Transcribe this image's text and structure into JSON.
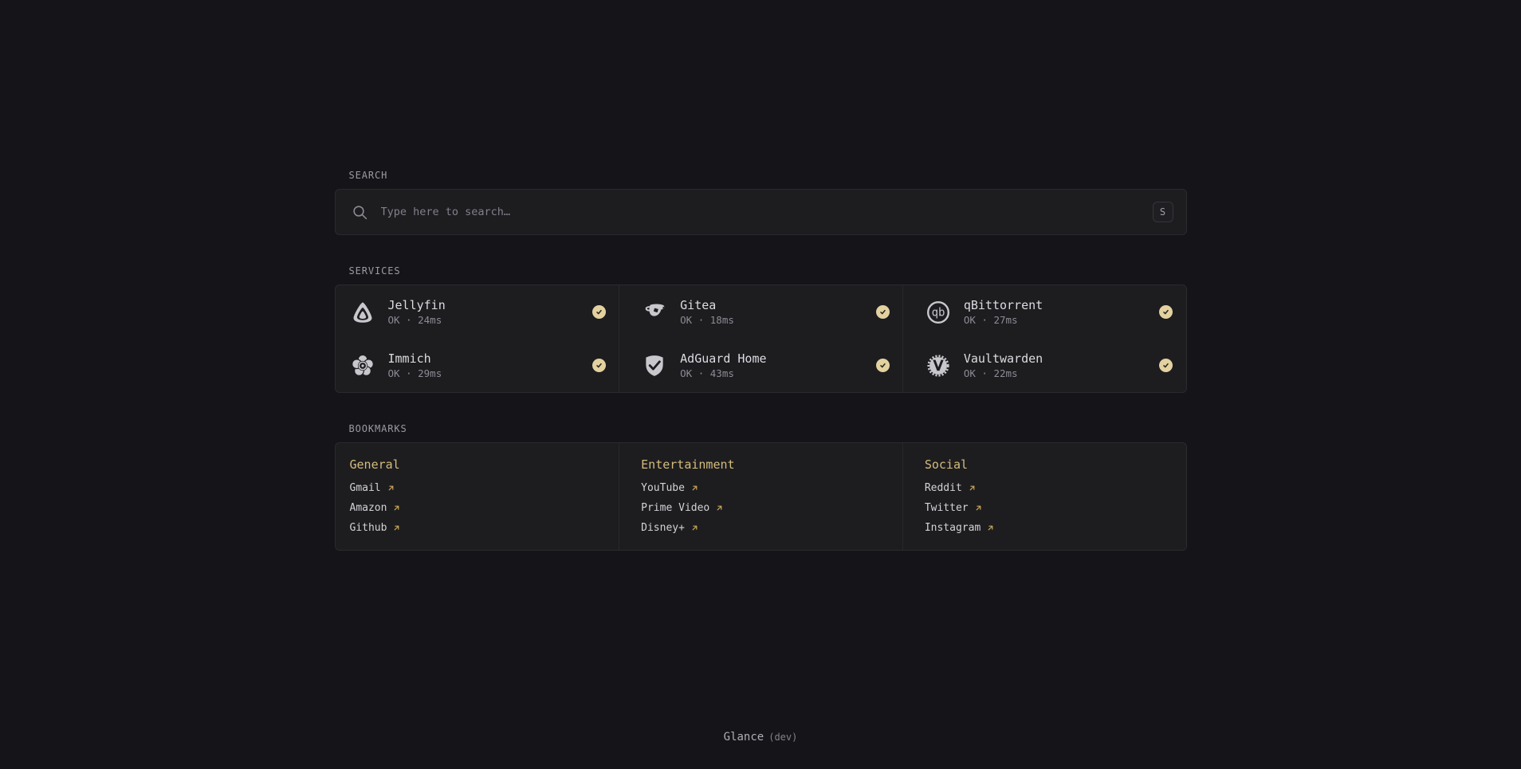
{
  "colors": {
    "accent": "#d5bc7c",
    "link_arrow": "#c7a65a",
    "status_ok_badge": "#e3d1a0",
    "background": "#151519",
    "card_background": "#1d1d20"
  },
  "search": {
    "section_label": "SEARCH",
    "placeholder": "Type here to search…",
    "shortcut_key": "S",
    "icon": "magnifier"
  },
  "services": {
    "section_label": "SERVICES",
    "status_badge_icon": "check",
    "items": [
      {
        "name": "Jellyfin",
        "status": "OK · 24ms",
        "icon": "jellyfin",
        "ok": true
      },
      {
        "name": "Gitea",
        "status": "OK · 18ms",
        "icon": "gitea",
        "ok": true
      },
      {
        "name": "qBittorrent",
        "status": "OK · 27ms",
        "icon": "qbittorrent",
        "ok": true
      },
      {
        "name": "Immich",
        "status": "OK · 29ms",
        "icon": "immich",
        "ok": true
      },
      {
        "name": "AdGuard Home",
        "status": "OK · 43ms",
        "icon": "adguard",
        "ok": true
      },
      {
        "name": "Vaultwarden",
        "status": "OK · 22ms",
        "icon": "vaultwarden",
        "ok": true
      }
    ]
  },
  "bookmarks": {
    "section_label": "BOOKMARKS",
    "link_arrow_icon": "arrow-up-right",
    "groups": [
      {
        "title": "General",
        "links": [
          "Gmail",
          "Amazon",
          "Github"
        ]
      },
      {
        "title": "Entertainment",
        "links": [
          "YouTube",
          "Prime Video",
          "Disney+"
        ]
      },
      {
        "title": "Social",
        "links": [
          "Reddit",
          "Twitter",
          "Instagram"
        ]
      }
    ]
  },
  "footer": {
    "app_name": "Glance",
    "env_label": "(dev)"
  }
}
